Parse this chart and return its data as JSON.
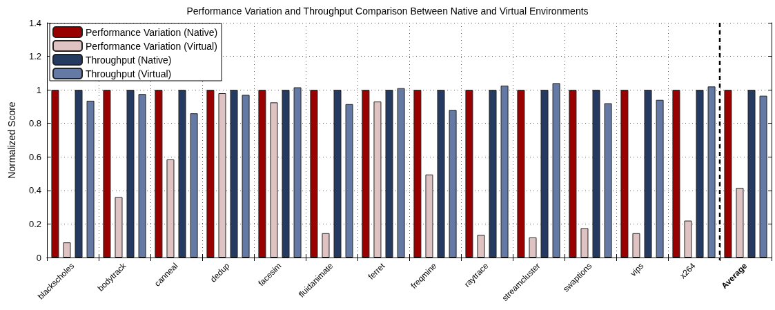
{
  "chart_data": {
    "type": "bar",
    "title": "Performance Variation and Throughput Comparison Between Native and Virtual Environments",
    "ylabel": "Normalized Score",
    "categories": [
      "blackscholes",
      "bodytrack",
      "canneal",
      "dedup",
      "facesim",
      "fluidanimate",
      "ferret",
      "freqmine",
      "raytrace",
      "streamcluster",
      "swaptions",
      "vips",
      "x264",
      "Average"
    ],
    "series": [
      {
        "name": "Performance Variation (Native)",
        "color": "#990000",
        "values": [
          1,
          1,
          1,
          1,
          1,
          1,
          1,
          1,
          1,
          1,
          1,
          1,
          1,
          1
        ]
      },
      {
        "name": "Performance Variation (Virtual)",
        "color": "#dfc2c2",
        "values": [
          0.09,
          0.36,
          0.585,
          0.98,
          0.925,
          0.145,
          0.93,
          0.495,
          0.135,
          0.12,
          0.175,
          0.145,
          0.22,
          0.415
        ]
      },
      {
        "name": "Throughput (Native)",
        "color": "#253a61",
        "values": [
          1,
          1,
          1,
          1,
          1,
          1,
          1,
          1,
          1,
          1,
          1,
          1,
          1,
          1
        ]
      },
      {
        "name": "Throughput (Virtual)",
        "color": "#6479a3",
        "values": [
          0.935,
          0.975,
          0.86,
          0.97,
          1.015,
          0.915,
          1.01,
          0.88,
          1.025,
          1.04,
          0.92,
          0.94,
          1.02,
          0.965
        ]
      }
    ],
    "ylim": [
      0,
      1.4
    ],
    "yticks": [
      0,
      0.2,
      0.4,
      0.6,
      0.8,
      1,
      1.2,
      1.4
    ],
    "grid": true,
    "legend": "top left",
    "ref_lines": [
      {
        "axis": "x",
        "value": "Average",
        "line_style": "dashed",
        "color": "#000000"
      }
    ]
  }
}
